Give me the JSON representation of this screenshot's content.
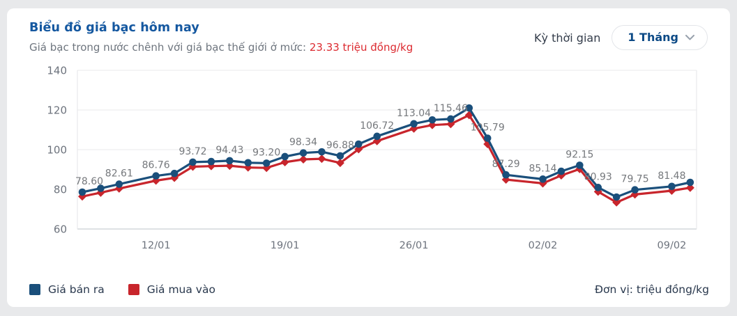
{
  "header": {
    "title": "Biểu đồ giá bạc hôm nay",
    "subtitle_prefix": "Giá bạc trong nước chênh với giá bạc thế giới ở mức: ",
    "subtitle_value": "23.33 triệu đồng/kg",
    "period_label": "Kỳ thời gian",
    "period_value": "1 Tháng",
    "period_chevron_icon": "chevron-down"
  },
  "chart_data": {
    "type": "line",
    "unit_label": "Đơn vị: triệu đồng/kg",
    "ylim": [
      60,
      140
    ],
    "y_ticks": [
      60,
      80,
      100,
      120,
      140
    ],
    "num_slots": 34,
    "grid": "horizontal",
    "legend_position": "bottom-left",
    "x_ticks": [
      {
        "slot": 4,
        "label": "12/01"
      },
      {
        "slot": 11,
        "label": "19/01"
      },
      {
        "slot": 18,
        "label": "26/01"
      },
      {
        "slot": 25,
        "label": "02/02"
      },
      {
        "slot": 32,
        "label": "09/02"
      }
    ],
    "colors": {
      "sell": "#1a4f7b",
      "buy": "#c8252c",
      "grid": "#e9e9eb",
      "axis": "#d4d7db",
      "data_label": "#75787c",
      "tick_label": "#6d737d"
    },
    "series": [
      {
        "id": "sell",
        "name": "Giá bán ra",
        "color": "#1a4f7b",
        "marker": "circle",
        "points": [
          {
            "slot": 0,
            "value": 78.6,
            "label": "78.60",
            "label_dx": 10
          },
          {
            "slot": 1,
            "value": 80.5
          },
          {
            "slot": 2,
            "value": 82.61,
            "label": "82.61"
          },
          {
            "slot": 4,
            "value": 86.76,
            "label": "86.76"
          },
          {
            "slot": 5,
            "value": 88.0
          },
          {
            "slot": 6,
            "value": 93.72,
            "label": "93.72"
          },
          {
            "slot": 7,
            "value": 94.0
          },
          {
            "slot": 8,
            "value": 94.43,
            "label": "94.43"
          },
          {
            "slot": 9,
            "value": 93.4
          },
          {
            "slot": 10,
            "value": 93.2,
            "label": "93.20"
          },
          {
            "slot": 11,
            "value": 96.5
          },
          {
            "slot": 12,
            "value": 98.34,
            "label": "98.34"
          },
          {
            "slot": 13,
            "value": 98.9
          },
          {
            "slot": 14,
            "value": 96.88,
            "label": "96.88"
          },
          {
            "slot": 15,
            "value": 102.8
          },
          {
            "slot": 16,
            "value": 106.72,
            "label": "106.72"
          },
          {
            "slot": 18,
            "value": 113.04,
            "label": "113.04"
          },
          {
            "slot": 19,
            "value": 115.0
          },
          {
            "slot": 20,
            "value": 115.46,
            "label": "115.46"
          },
          {
            "slot": 21,
            "value": 121.0
          },
          {
            "slot": 22,
            "value": 105.79,
            "label": "105.79"
          },
          {
            "slot": 23,
            "value": 87.29,
            "label": "87.29"
          },
          {
            "slot": 25,
            "value": 85.14,
            "label": "85.14"
          },
          {
            "slot": 26,
            "value": 89.1
          },
          {
            "slot": 27,
            "value": 92.15,
            "label": "92.15"
          },
          {
            "slot": 28,
            "value": 80.93,
            "label": "80.93"
          },
          {
            "slot": 29,
            "value": 76.1
          },
          {
            "slot": 30,
            "value": 79.75,
            "label": "79.75"
          },
          {
            "slot": 32,
            "value": 81.48,
            "label": "81.48"
          },
          {
            "slot": 33,
            "value": 83.5
          }
        ]
      },
      {
        "id": "buy",
        "name": "Giá mua vào",
        "color": "#c8252c",
        "marker": "diamond",
        "points": [
          {
            "slot": 0,
            "value": 76.4
          },
          {
            "slot": 1,
            "value": 78.3
          },
          {
            "slot": 2,
            "value": 80.4
          },
          {
            "slot": 4,
            "value": 84.4
          },
          {
            "slot": 5,
            "value": 85.8
          },
          {
            "slot": 6,
            "value": 91.4
          },
          {
            "slot": 7,
            "value": 91.7
          },
          {
            "slot": 8,
            "value": 91.9
          },
          {
            "slot": 9,
            "value": 91.0
          },
          {
            "slot": 10,
            "value": 90.8
          },
          {
            "slot": 11,
            "value": 93.7
          },
          {
            "slot": 12,
            "value": 95.1
          },
          {
            "slot": 13,
            "value": 95.4
          },
          {
            "slot": 14,
            "value": 93.3
          },
          {
            "slot": 15,
            "value": 100.2
          },
          {
            "slot": 16,
            "value": 104.3
          },
          {
            "slot": 18,
            "value": 110.6
          },
          {
            "slot": 19,
            "value": 112.4
          },
          {
            "slot": 20,
            "value": 112.9
          },
          {
            "slot": 21,
            "value": 117.4
          },
          {
            "slot": 22,
            "value": 102.8
          },
          {
            "slot": 23,
            "value": 84.9
          },
          {
            "slot": 25,
            "value": 83.0
          },
          {
            "slot": 26,
            "value": 87.0
          },
          {
            "slot": 27,
            "value": 90.2
          },
          {
            "slot": 28,
            "value": 78.8
          },
          {
            "slot": 29,
            "value": 73.4
          },
          {
            "slot": 30,
            "value": 77.4
          },
          {
            "slot": 32,
            "value": 79.3
          },
          {
            "slot": 33,
            "value": 80.8
          }
        ]
      }
    ]
  }
}
